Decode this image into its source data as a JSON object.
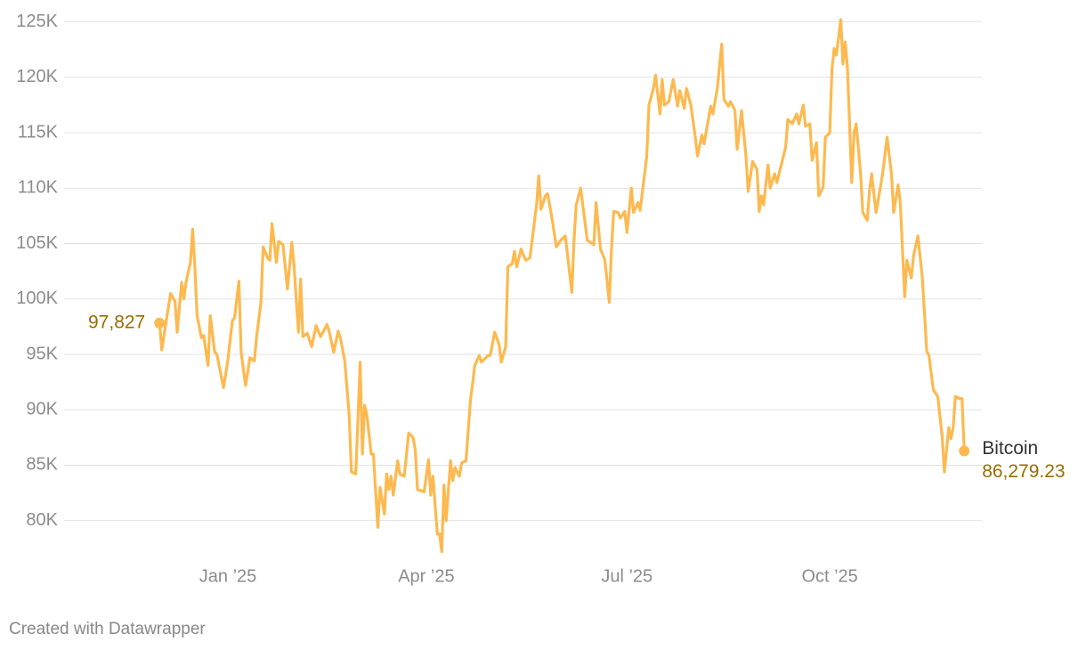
{
  "chart_data": {
    "type": "line",
    "credit": "Created with Datawrapper",
    "x": [
      -31,
      -30,
      -28,
      -26,
      -24,
      -23,
      -21,
      -20,
      -19,
      -17,
      -16,
      -15,
      -14,
      -12,
      -11,
      -9,
      -8,
      -6,
      -5,
      -2,
      0,
      2,
      3,
      5,
      6,
      8,
      10,
      12,
      13,
      15,
      16,
      18,
      19,
      20,
      22,
      23,
      25,
      27,
      29,
      30,
      32,
      33,
      34,
      36,
      38,
      40,
      42,
      45,
      46,
      48,
      50,
      51,
      53,
      55,
      56,
      58,
      60,
      61,
      62,
      63,
      65,
      66,
      68,
      69,
      71,
      72,
      73,
      74,
      75,
      77,
      78,
      80,
      82,
      84,
      85,
      86,
      89,
      91,
      92,
      93,
      95,
      96,
      97,
      98,
      99,
      101,
      102,
      103,
      105,
      106,
      108,
      110,
      112,
      114,
      115,
      118,
      119,
      121,
      123,
      124,
      126,
      127,
      129,
      130,
      131,
      133,
      135,
      137,
      138,
      140,
      141,
      142,
      144,
      145,
      147,
      149,
      151,
      153,
      154,
      156,
      157,
      158,
      160,
      162,
      163,
      166,
      167,
      169,
      171,
      173,
      174,
      175,
      177,
      178,
      180,
      181,
      183,
      184,
      186,
      187,
      190,
      191,
      193,
      194,
      196,
      197,
      198,
      200,
      202,
      204,
      205,
      207,
      208,
      210,
      212,
      213,
      215,
      216,
      219,
      220,
      222,
      224,
      225,
      227,
      228,
      230,
      231,
      233,
      235,
      236,
      238,
      240,
      241,
      242,
      243,
      245,
      246,
      248,
      249,
      251,
      253,
      254,
      256,
      258,
      259,
      261,
      262,
      264,
      265,
      267,
      268,
      270,
      271,
      273,
      274,
      275,
      276,
      278,
      279,
      280,
      281,
      283,
      284,
      285,
      287,
      288,
      290,
      291,
      292,
      294,
      296,
      297,
      299,
      301,
      302,
      304,
      305,
      307,
      308,
      310,
      311,
      313,
      315,
      317,
      318,
      320,
      322,
      324,
      325,
      327,
      328,
      329,
      330,
      332,
      333,
      334
    ],
    "series": [
      {
        "name": "Bitcoin",
        "color": "#fdb94f",
        "values": [
          97827,
          95400,
          98000,
          100500,
          99800,
          97000,
          101500,
          100000,
          101500,
          103300,
          106300,
          103000,
          98500,
          96500,
          96700,
          94000,
          98500,
          95200,
          95000,
          92000,
          94500,
          98000,
          98300,
          101600,
          95200,
          92200,
          94700,
          94400,
          96600,
          99700,
          104700,
          103700,
          103500,
          106800,
          103300,
          105200,
          104900,
          100900,
          105100,
          103000,
          97000,
          101800,
          96600,
          96900,
          95700,
          97600,
          96600,
          97700,
          97000,
          95200,
          97100,
          96500,
          94400,
          89600,
          84400,
          84200,
          94300,
          86000,
          90400,
          89600,
          86000,
          86000,
          79400,
          83000,
          80600,
          84200,
          82800,
          84000,
          82300,
          85400,
          84200,
          84000,
          87900,
          87500,
          86400,
          82800,
          82600,
          85500,
          82300,
          84000,
          78800,
          78800,
          77200,
          83200,
          80000,
          85400,
          83600,
          84800,
          84000,
          85200,
          85400,
          90800,
          94000,
          94900,
          94300,
          94900,
          94900,
          97000,
          95900,
          94300,
          95700,
          102900,
          103200,
          104300,
          102900,
          104500,
          103500,
          103700,
          105300,
          108500,
          111100,
          108100,
          109300,
          109500,
          107300,
          104700,
          105300,
          105700,
          104100,
          100600,
          105300,
          108500,
          110000,
          106900,
          105300,
          104900,
          108700,
          104500,
          103500,
          99700,
          104500,
          107900,
          107800,
          107300,
          107900,
          106000,
          110000,
          107800,
          108700,
          108000,
          112900,
          117500,
          119000,
          120200,
          116700,
          119800,
          117500,
          117800,
          119800,
          117400,
          118800,
          117200,
          119000,
          117500,
          114600,
          112900,
          114800,
          114000,
          117400,
          116700,
          119000,
          123000,
          118000,
          117400,
          117800,
          117000,
          113500,
          117000,
          112900,
          109700,
          112400,
          111700,
          107900,
          109300,
          108500,
          112100,
          110000,
          111300,
          110500,
          112100,
          113700,
          116200,
          115800,
          116700,
          115800,
          117500,
          115600,
          115800,
          112500,
          114100,
          109300,
          110100,
          114600,
          115000,
          120700,
          122600,
          122000,
          125200,
          121200,
          123200,
          121000,
          110500,
          115000,
          115800,
          111300,
          107800,
          107100,
          109700,
          111300,
          107800,
          110100,
          111300,
          114600,
          111300,
          107800,
          110300,
          108700,
          100200,
          103500,
          101900,
          103900,
          105700,
          101900,
          95300,
          94900,
          91800,
          91200,
          87600,
          84400,
          88400,
          87400,
          88400,
          91200,
          91000,
          91000,
          86279.23
        ],
        "value_labels": [
          "97,827",
          null,
          null,
          null,
          null,
          null,
          null,
          null,
          null,
          null,
          null,
          null,
          null,
          null,
          null,
          null,
          null,
          null,
          null,
          null,
          null,
          null,
          null,
          null,
          null,
          null,
          null,
          null,
          null,
          null,
          null,
          null,
          null,
          null,
          null,
          null,
          null,
          null,
          null,
          null,
          null,
          null,
          null,
          null,
          null,
          null,
          null,
          null,
          null,
          null,
          null,
          null,
          null,
          null,
          null,
          null,
          null,
          null,
          null,
          null,
          null,
          null,
          null,
          null,
          null,
          null,
          null,
          null,
          null,
          null,
          null,
          null,
          null,
          null,
          null,
          null,
          null,
          null,
          null,
          null,
          null,
          null,
          null,
          null,
          null,
          null,
          null,
          null,
          null,
          null,
          null,
          null,
          null,
          null,
          null,
          null,
          null,
          null,
          null,
          null,
          null,
          null,
          null,
          null,
          null,
          null,
          null,
          null,
          null,
          null,
          null,
          null,
          null,
          null,
          null,
          null,
          null,
          null,
          null,
          null,
          null,
          null,
          null,
          null,
          null,
          null,
          null,
          null,
          null,
          null,
          null,
          null,
          null,
          null,
          null,
          null,
          null,
          null,
          null,
          null,
          null,
          null,
          null,
          null,
          null,
          null,
          null,
          null,
          null,
          null,
          null,
          null,
          null,
          null,
          null,
          null,
          null,
          null,
          null,
          null,
          null,
          null,
          null,
          null,
          null,
          null,
          null,
          null,
          null,
          null,
          null,
          null,
          null,
          null,
          null,
          null,
          null,
          null,
          null,
          null,
          null,
          null,
          null,
          null,
          null,
          null,
          null,
          null,
          null,
          null,
          null,
          null,
          null,
          null,
          null,
          null,
          null,
          null,
          null,
          null,
          null,
          null,
          null,
          null,
          null,
          null,
          null,
          null,
          null,
          null,
          null,
          null,
          null,
          null,
          null,
          null,
          null,
          null,
          null,
          null,
          null,
          null,
          null,
          null,
          null,
          null,
          null,
          null,
          null,
          null,
          null,
          null,
          null,
          null,
          null,
          "86,279.23"
        ]
      }
    ],
    "xlim": [
      -63,
      342
    ],
    "xticks": [
      {
        "value": 0,
        "label": "Jan ’25"
      },
      {
        "value": 90,
        "label": "Apr ’25"
      },
      {
        "value": 181,
        "label": "Jul ’25"
      },
      {
        "value": 273,
        "label": "Oct ’25"
      }
    ],
    "ylim": [
      77000,
      126000
    ],
    "yticks": [
      {
        "value": 80000,
        "label": "80K"
      },
      {
        "value": 85000,
        "label": "85K"
      },
      {
        "value": 90000,
        "label": "90K"
      },
      {
        "value": 95000,
        "label": "95K"
      },
      {
        "value": 100000,
        "label": "100K"
      },
      {
        "value": 105000,
        "label": "105K"
      },
      {
        "value": 110000,
        "label": "110K"
      },
      {
        "value": 115000,
        "label": "115K"
      },
      {
        "value": 120000,
        "label": "120K"
      },
      {
        "value": 125000,
        "label": "125K"
      }
    ],
    "grid": true
  }
}
